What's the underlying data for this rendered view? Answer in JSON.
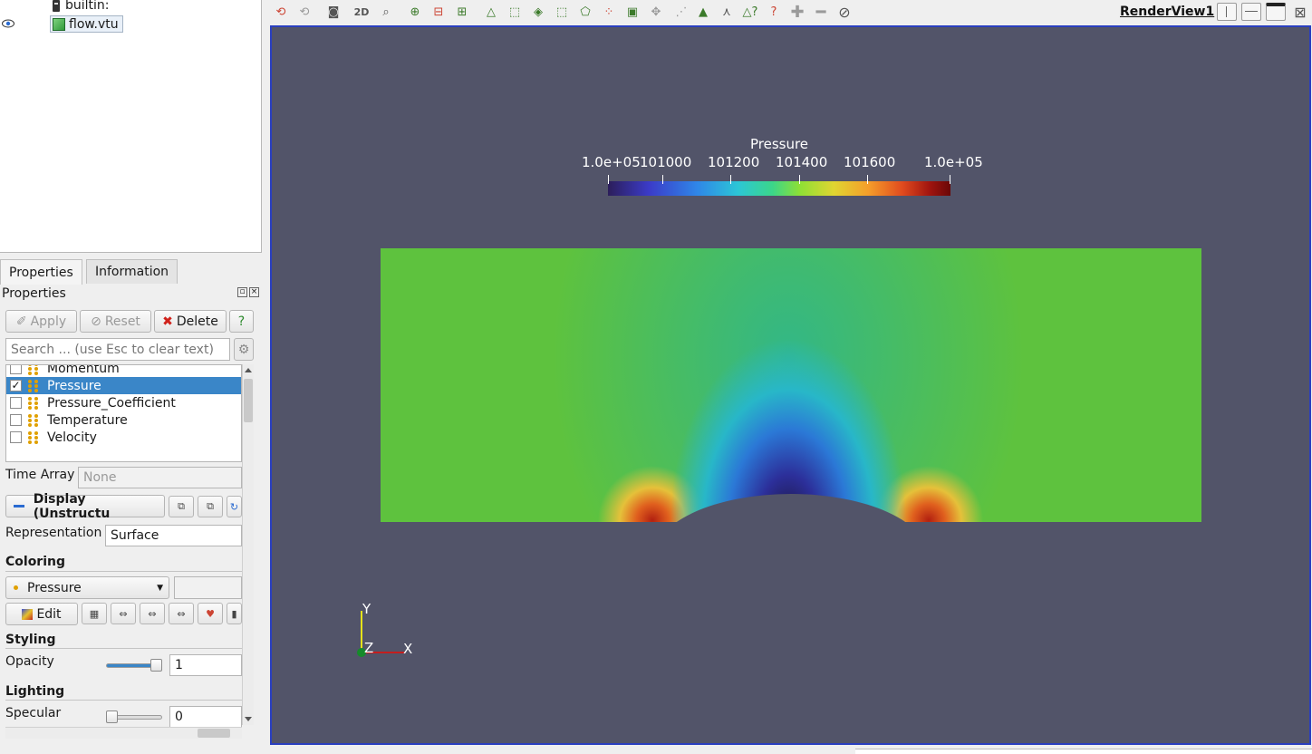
{
  "pipeline": {
    "server": "builtin:",
    "source": "flow.vtu"
  },
  "tabs": [
    "Properties",
    "Information"
  ],
  "panel": {
    "title": "Properties",
    "apply": "Apply",
    "reset": "Reset",
    "delete": "Delete",
    "help": "?",
    "search_placeholder": "Search ... (use Esc to clear text)",
    "arrays": [
      {
        "name": "Momentum",
        "checked": false,
        "selected": false
      },
      {
        "name": "Pressure",
        "checked": true,
        "selected": true
      },
      {
        "name": "Pressure_Coefficient",
        "checked": false,
        "selected": false
      },
      {
        "name": "Temperature",
        "checked": false,
        "selected": false
      },
      {
        "name": "Velocity",
        "checked": false,
        "selected": false
      }
    ],
    "time_array_label": "Time Array",
    "time_array_value": "None",
    "display_header": "Display (Unstructu",
    "representation_label": "Representation",
    "representation_value": "Surface",
    "coloring_section": "Coloring",
    "coloring_array": "Pressure",
    "edit": "Edit",
    "styling_section": "Styling",
    "opacity_label": "Opacity",
    "opacity_value": "1",
    "lighting_section": "Lighting",
    "specular_label": "Specular",
    "specular_value": "0"
  },
  "render_view": {
    "title": "RenderView1",
    "toolbar_2d": "2D",
    "scalar_bar": {
      "title": "Pressure",
      "ticks": [
        "1.0e+05",
        "101000",
        "101200",
        "101400",
        "101600",
        "1.0e+05"
      ]
    },
    "axes": {
      "x": "X",
      "y": "Y",
      "z": "Z"
    }
  },
  "colors": {
    "background": "#525469",
    "selection": "#3a86c8",
    "view_border": "#2a3fbf"
  }
}
